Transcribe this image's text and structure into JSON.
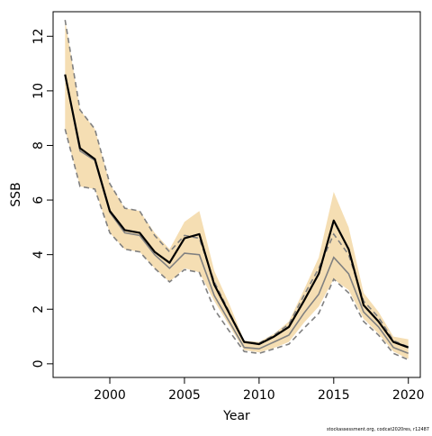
{
  "chart_data": {
    "type": "line",
    "title": "",
    "xlabel": "Year",
    "ylabel": "SSB",
    "xlim": [
      1996.2,
      2020.8
    ],
    "ylim": [
      -0.5,
      12.9
    ],
    "x_ticks": [
      2000,
      2005,
      2010,
      2015,
      2020
    ],
    "y_ticks": [
      0,
      2,
      4,
      6,
      8,
      10,
      12
    ],
    "x": [
      1997,
      1998,
      1999,
      2000,
      2001,
      2002,
      2003,
      2004,
      2005,
      2006,
      2007,
      2008,
      2009,
      2010,
      2011,
      2012,
      2013,
      2014,
      2015,
      2016,
      2017,
      2018,
      2019,
      2020
    ],
    "series": [
      {
        "role": "estimate",
        "values": [
          10.6,
          7.9,
          7.5,
          5.6,
          4.9,
          4.8,
          4.1,
          3.7,
          4.6,
          4.75,
          2.9,
          1.85,
          0.8,
          0.72,
          1.0,
          1.35,
          2.3,
          3.3,
          5.25,
          4.2,
          2.15,
          1.55,
          0.8,
          0.6
        ]
      },
      {
        "role": "upper_bound",
        "values": [
          12.6,
          9.3,
          8.6,
          6.6,
          5.7,
          5.6,
          4.8,
          4.2,
          5.2,
          5.6,
          3.4,
          2.2,
          0.85,
          0.8,
          1.1,
          1.55,
          2.7,
          3.9,
          6.3,
          5.0,
          2.6,
          1.9,
          1.0,
          0.9
        ]
      },
      {
        "role": "lower_bound",
        "values": [
          8.6,
          6.5,
          6.4,
          4.8,
          4.2,
          4.1,
          3.5,
          3.0,
          3.5,
          3.35,
          2.3,
          1.4,
          0.5,
          0.42,
          0.58,
          0.8,
          1.5,
          2.1,
          3.1,
          2.7,
          1.65,
          1.1,
          0.45,
          0.18
        ]
      },
      {
        "role": "alternate_estimate",
        "values": [
          10.6,
          7.8,
          7.45,
          5.55,
          4.8,
          4.7,
          4.0,
          3.5,
          4.05,
          4.0,
          2.5,
          1.55,
          0.6,
          0.55,
          0.8,
          1.05,
          1.85,
          2.55,
          3.9,
          3.3,
          1.9,
          1.35,
          0.6,
          0.38
        ]
      },
      {
        "role": "alternate_upper",
        "values": [
          12.6,
          9.3,
          8.6,
          6.6,
          5.7,
          5.6,
          4.7,
          4.1,
          4.7,
          4.6,
          3.0,
          1.9,
          0.8,
          0.75,
          1.05,
          1.45,
          2.5,
          3.5,
          4.75,
          4.0,
          2.3,
          1.7,
          0.85,
          0.62
        ]
      },
      {
        "role": "alternate_lower",
        "values": [
          8.6,
          6.5,
          6.4,
          4.8,
          4.2,
          4.1,
          3.5,
          3.0,
          3.45,
          3.35,
          2.0,
          1.2,
          0.45,
          0.38,
          0.55,
          0.72,
          1.3,
          1.85,
          3.1,
          2.6,
          1.55,
          1.05,
          0.38,
          0.15
        ]
      }
    ],
    "colors": {
      "band": "#f5deb3",
      "estimate": "#000000",
      "alternate": "#808080"
    },
    "grid": false,
    "footnote": "stockassessment.org, codcat2020res, r12487"
  }
}
